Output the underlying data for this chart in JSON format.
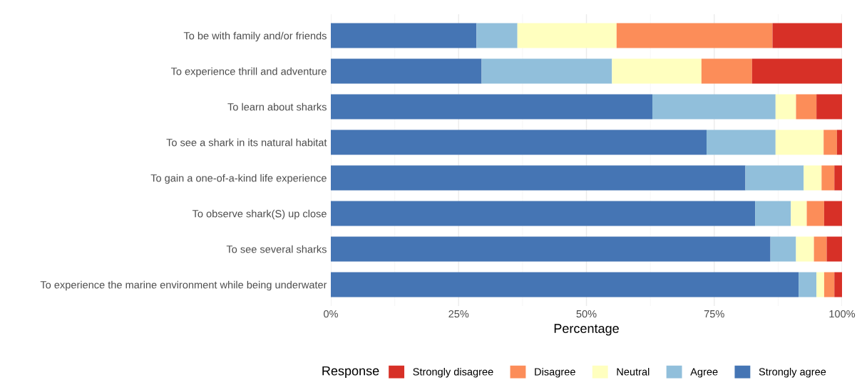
{
  "chart_data": {
    "type": "bar",
    "orientation": "horizontal",
    "stacked": true,
    "categories": [
      "To be with family and/or friends",
      "To experience thrill and adventure",
      "To learn about sharks",
      "To see a shark in its natural habitat",
      "To gain a one-of-a-kind life experience",
      "To observe shark(S) up close",
      "To see several sharks",
      "To experience the marine environment while being underwater"
    ],
    "series": [
      {
        "name": "Strongly agree",
        "color": "#4575b4",
        "values": [
          28.5,
          29.5,
          62.9,
          73.5,
          81.1,
          83.0,
          86.0,
          91.5
        ]
      },
      {
        "name": "Agree",
        "color": "#91bfdb",
        "values": [
          8.0,
          25.5,
          24.1,
          13.5,
          11.4,
          7.0,
          5.0,
          3.5
        ]
      },
      {
        "name": "Neutral",
        "color": "#ffffbf",
        "values": [
          19.4,
          17.5,
          4.0,
          9.4,
          3.5,
          3.1,
          3.5,
          1.5
        ]
      },
      {
        "name": "Disagree",
        "color": "#fc8d59",
        "values": [
          30.5,
          9.9,
          4.0,
          2.6,
          2.5,
          3.4,
          2.5,
          2.0
        ]
      },
      {
        "name": "Strongly disagree",
        "color": "#d73027",
        "values": [
          13.6,
          17.6,
          5.0,
          1.0,
          1.5,
          3.5,
          3.0,
          1.5
        ]
      }
    ],
    "xlabel": "Percentage",
    "legend_title": "Response",
    "legend": "bottom",
    "grid": "x",
    "xlim": [
      0,
      100
    ],
    "xticks": [
      {
        "value": 0,
        "label": "0%"
      },
      {
        "value": 25,
        "label": "25%"
      },
      {
        "value": 50,
        "label": "50%"
      },
      {
        "value": 75,
        "label": "75%"
      },
      {
        "value": 100,
        "label": "100%"
      }
    ]
  }
}
